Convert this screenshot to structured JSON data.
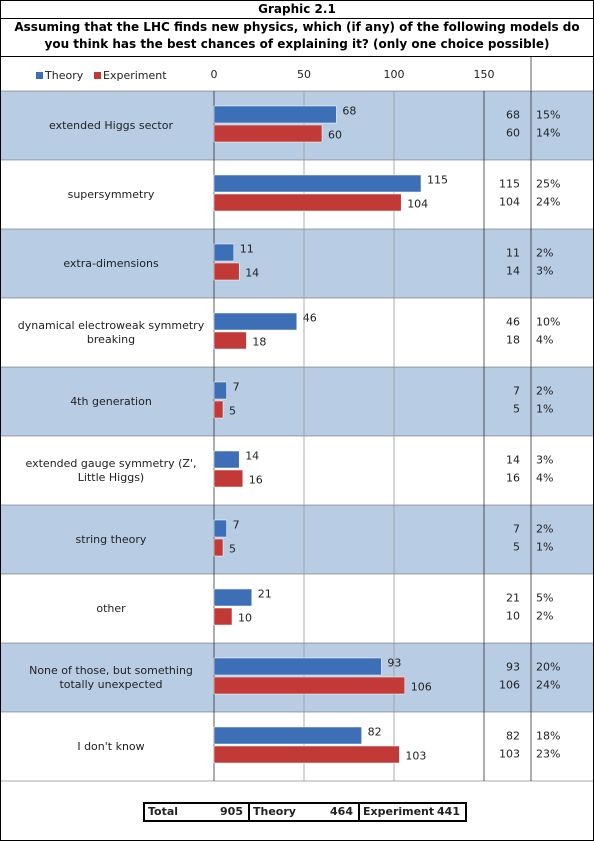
{
  "chart_data": {
    "type": "bar",
    "orientation": "horizontal",
    "title": "Graphic 2.1",
    "subtitle": "Assuming that the LHC finds new physics, which (if any) of the following models do you think has the best chances of explaining it? (only one choice possible)",
    "categories": [
      "extended Higgs sector",
      "supersymmetry",
      "extra-dimensions",
      "dynamical electroweak symmetry breaking",
      "4th generation",
      "extended gauge symmetry (Z', Little Higgs)",
      "string theory",
      "other",
      "None of those, but something totally unexpected",
      "I don't know"
    ],
    "series": [
      {
        "name": "Theory",
        "color": "#3d6fb6",
        "values": [
          68,
          115,
          11,
          46,
          7,
          14,
          7,
          21,
          93,
          82
        ],
        "shares": [
          15,
          25,
          2,
          10,
          2,
          3,
          2,
          5,
          20,
          18
        ],
        "share_labels": [
          "15%",
          "25%",
          "2%",
          "10%",
          "2%",
          "3%",
          "2%",
          "5%",
          "20%",
          "18%"
        ]
      },
      {
        "name": "Experiment",
        "color": "#c23a37",
        "values": [
          60,
          104,
          14,
          18,
          5,
          16,
          5,
          10,
          106,
          103
        ],
        "shares": [
          14,
          24,
          3,
          4,
          1,
          4,
          1,
          2,
          24,
          23
        ],
        "share_labels": [
          "14%",
          "24%",
          "3%",
          "4%",
          "1%",
          "4%",
          "1%",
          "2%",
          "24%",
          "23%"
        ]
      }
    ],
    "xlim": [
      0,
      150
    ],
    "xticks": [
      0,
      50,
      100,
      150
    ],
    "grid": true,
    "legend": "top-left",
    "totals": [
      {
        "label": "Total",
        "value": 905
      },
      {
        "label": "Theory",
        "value": 464
      },
      {
        "label": "Experiment",
        "value": 441
      }
    ]
  }
}
